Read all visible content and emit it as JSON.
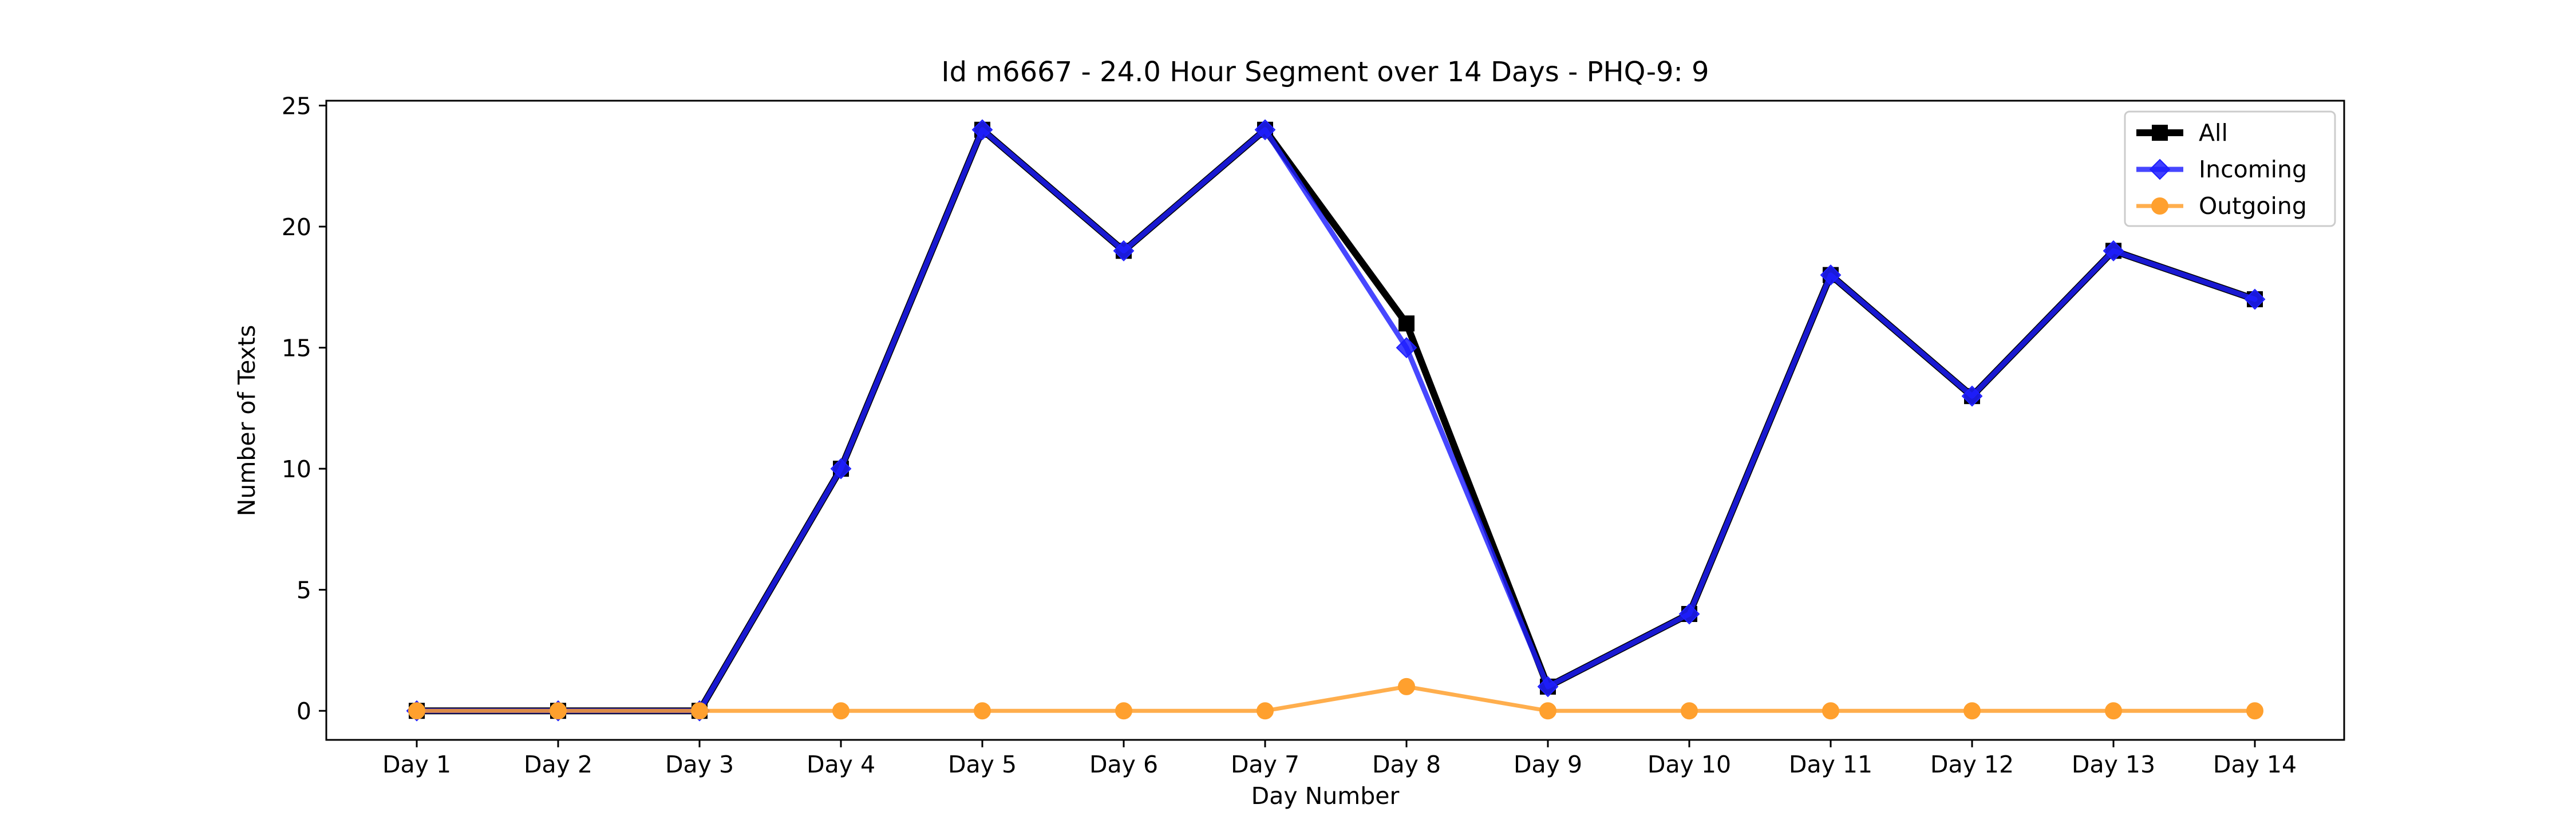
{
  "chart_data": {
    "type": "line",
    "title": "Id m6667 - 24.0 Hour Segment over 14 Days - PHQ-9: 9",
    "xlabel": "Day Number",
    "ylabel": "Number of Texts",
    "categories": [
      "Day 1",
      "Day 2",
      "Day 3",
      "Day 4",
      "Day 5",
      "Day 6",
      "Day 7",
      "Day 8",
      "Day 9",
      "Day 10",
      "Day 11",
      "Day 12",
      "Day 13",
      "Day 14"
    ],
    "ylim": [
      -1.2,
      25.2
    ],
    "yticks": [
      0,
      5,
      10,
      15,
      20,
      25
    ],
    "grid": false,
    "legend_position": "top-right",
    "series": [
      {
        "name": "All",
        "values": [
          0,
          0,
          0,
          10,
          24,
          19,
          24,
          16,
          1,
          4,
          18,
          13,
          19,
          17
        ],
        "color": "#000000",
        "marker": "square"
      },
      {
        "name": "Incoming",
        "values": [
          0,
          0,
          0,
          10,
          24,
          19,
          24,
          15,
          1,
          4,
          18,
          13,
          19,
          17
        ],
        "color": "#1f1fff",
        "marker": "diamond"
      },
      {
        "name": "Outgoing",
        "values": [
          0,
          0,
          0,
          0,
          0,
          0,
          0,
          1,
          0,
          0,
          0,
          0,
          0,
          0
        ],
        "color": "#ffa02e",
        "marker": "circle"
      }
    ]
  }
}
